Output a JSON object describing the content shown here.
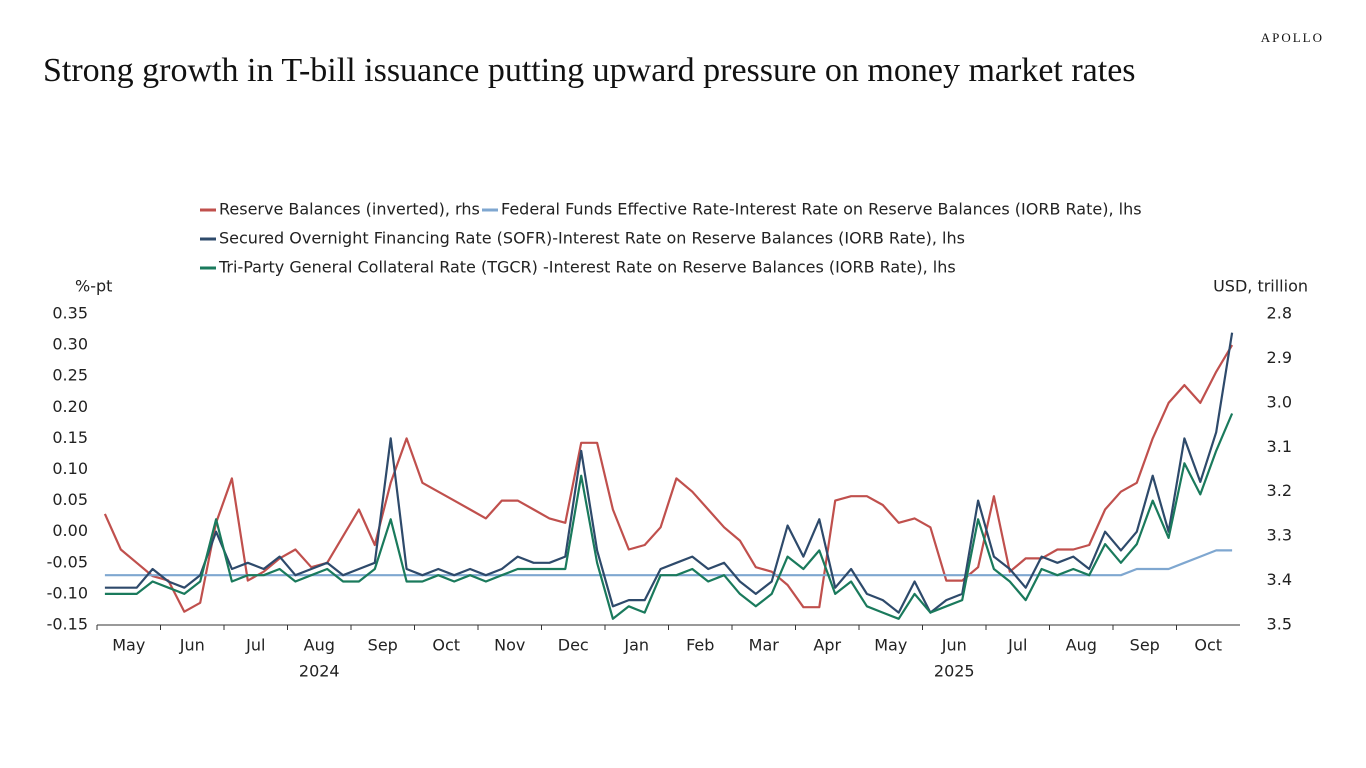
{
  "brand": "APOLLO",
  "chart_data": {
    "type": "line",
    "title": "Strong growth in T-bill issuance putting upward pressure on money market rates",
    "y_label": "%-pt",
    "y2_label": "USD, trillion",
    "categories": [
      "May",
      null,
      null,
      null,
      "Jun",
      null,
      null,
      null,
      "Jul",
      null,
      null,
      null,
      "Aug",
      null,
      null,
      null,
      "Sep",
      null,
      null,
      null,
      "Oct",
      null,
      null,
      null,
      "Nov",
      null,
      null,
      null,
      "Dec",
      null,
      null,
      null,
      "Jan",
      null,
      null,
      null,
      "Feb",
      null,
      null,
      null,
      "Mar",
      null,
      null,
      null,
      "Apr",
      null,
      null,
      null,
      "May",
      null,
      null,
      null,
      "Jun",
      null,
      null,
      null,
      "Jul",
      null,
      null,
      null,
      "Aug",
      null,
      null,
      null,
      "Sep",
      null,
      null,
      null,
      "Oct",
      null,
      null,
      null
    ],
    "years": [
      null,
      null,
      null,
      null,
      null,
      null,
      null,
      null,
      null,
      null,
      null,
      null,
      "2024",
      null,
      null,
      null,
      null,
      null,
      null,
      null,
      null,
      null,
      null,
      null,
      null,
      null,
      null,
      null,
      null,
      null,
      null,
      null,
      null,
      null,
      null,
      null,
      null,
      null,
      null,
      null,
      null,
      null,
      null,
      null,
      null,
      null,
      null,
      null,
      null,
      null,
      null,
      null,
      "2025",
      null,
      null,
      null,
      null,
      null,
      null,
      null,
      null,
      null,
      null,
      null,
      null,
      null,
      null,
      null,
      null,
      null,
      null,
      null
    ],
    "ylim": [
      -0.15,
      0.35
    ],
    "yticks": [
      {
        "value": -0.15,
        "label": "-0.15"
      },
      {
        "value": -0.1,
        "label": "-0.10"
      },
      {
        "value": -0.05,
        "label": "-0.05"
      },
      {
        "value": 0,
        "label": "0.00"
      },
      {
        "value": 0.05,
        "label": "0.05"
      },
      {
        "value": 0.1,
        "label": "0.10"
      },
      {
        "value": 0.15,
        "label": "0.15"
      },
      {
        "value": 0.2,
        "label": "0.20"
      },
      {
        "value": 0.25,
        "label": "0.25"
      },
      {
        "value": 0.3,
        "label": "0.30"
      },
      {
        "value": 0.35,
        "label": "0.35"
      }
    ],
    "y2lim": [
      3.5,
      2.8
    ],
    "y2ticks": [
      3.5,
      3.4,
      3.3,
      3.2,
      3.1,
      {
        "value": 3.0,
        "label": "3.0"
      },
      2.9,
      2.8
    ],
    "series": [
      {
        "name": "Reserve Balances (inverted), rhs",
        "color": "#c0504d",
        "axis": "y2",
        "values": [
          3.25,
          3.33,
          3.36,
          3.39,
          3.4,
          3.47,
          3.45,
          3.27,
          3.17,
          3.4,
          3.38,
          3.35,
          3.33,
          3.37,
          3.36,
          3.3,
          3.24,
          3.32,
          3.18,
          3.08,
          3.18,
          3.2,
          3.22,
          3.24,
          3.26,
          3.22,
          3.22,
          3.24,
          3.26,
          3.27,
          3.09,
          3.09,
          3.24,
          3.33,
          3.32,
          3.28,
          3.17,
          3.2,
          3.24,
          3.28,
          3.31,
          3.37,
          3.38,
          3.41,
          3.46,
          3.46,
          3.22,
          3.21,
          3.21,
          3.23,
          3.27,
          3.26,
          3.28,
          3.4,
          3.4,
          3.37,
          3.21,
          3.38,
          3.35,
          3.35,
          3.33,
          3.33,
          3.32,
          3.24,
          3.2,
          3.18,
          3.08,
          3.0,
          2.96,
          3.0,
          2.93,
          2.87
        ]
      },
      {
        "name": "Federal Funds Effective Rate-Interest Rate on Reserve Balances (IORB Rate), lhs",
        "color": "#7fa7d0",
        "values": [
          -0.07,
          -0.07,
          -0.07,
          -0.07,
          -0.07,
          -0.07,
          -0.07,
          -0.07,
          -0.07,
          -0.07,
          -0.07,
          -0.07,
          -0.07,
          -0.07,
          -0.07,
          -0.07,
          -0.07,
          -0.07,
          -0.07,
          -0.07,
          -0.07,
          -0.07,
          -0.07,
          -0.07,
          -0.07,
          -0.07,
          -0.07,
          -0.07,
          -0.07,
          -0.07,
          -0.07,
          -0.07,
          -0.07,
          -0.07,
          -0.07,
          -0.07,
          -0.07,
          -0.07,
          -0.07,
          -0.07,
          -0.07,
          -0.07,
          -0.07,
          -0.07,
          -0.07,
          -0.07,
          -0.07,
          -0.07,
          -0.07,
          -0.07,
          -0.07,
          -0.07,
          -0.07,
          -0.07,
          -0.07,
          -0.07,
          -0.07,
          -0.07,
          -0.07,
          -0.07,
          -0.07,
          -0.07,
          -0.07,
          -0.07,
          -0.07,
          -0.06,
          -0.06,
          -0.06,
          -0.05,
          -0.04,
          -0.03,
          -0.03
        ]
      },
      {
        "name": "Secured Overnight Financing Rate (SOFR)-Interest Rate on Reserve Balances (IORB Rate), lhs",
        "color": "#2e4a6b",
        "values": [
          -0.09,
          -0.09,
          -0.09,
          -0.06,
          -0.08,
          -0.09,
          -0.07,
          0.0,
          -0.06,
          -0.05,
          -0.06,
          -0.04,
          -0.07,
          -0.06,
          -0.05,
          -0.07,
          -0.06,
          -0.05,
          0.15,
          -0.06,
          -0.07,
          -0.06,
          -0.07,
          -0.06,
          -0.07,
          -0.06,
          -0.04,
          -0.05,
          -0.05,
          -0.04,
          0.13,
          -0.03,
          -0.12,
          -0.11,
          -0.11,
          -0.06,
          -0.05,
          -0.04,
          -0.06,
          -0.05,
          -0.08,
          -0.1,
          -0.08,
          0.01,
          -0.04,
          0.02,
          -0.09,
          -0.06,
          -0.1,
          -0.11,
          -0.13,
          -0.08,
          -0.13,
          -0.11,
          -0.1,
          0.05,
          -0.04,
          -0.06,
          -0.09,
          -0.04,
          -0.05,
          -0.04,
          -0.06,
          0.0,
          -0.03,
          0.0,
          0.09,
          0.0,
          0.15,
          0.08,
          0.16,
          0.32
        ]
      },
      {
        "name": "Tri-Party General Collateral Rate (TGCR) -Interest Rate on Reserve Balances (IORB Rate), lhs",
        "color": "#1a7a5c",
        "values": [
          -0.1,
          -0.1,
          -0.1,
          -0.08,
          -0.09,
          -0.1,
          -0.08,
          0.02,
          -0.08,
          -0.07,
          -0.07,
          -0.06,
          -0.08,
          -0.07,
          -0.06,
          -0.08,
          -0.08,
          -0.06,
          0.02,
          -0.08,
          -0.08,
          -0.07,
          -0.08,
          -0.07,
          -0.08,
          -0.07,
          -0.06,
          -0.06,
          -0.06,
          -0.06,
          0.09,
          -0.05,
          -0.14,
          -0.12,
          -0.13,
          -0.07,
          -0.07,
          -0.06,
          -0.08,
          -0.07,
          -0.1,
          -0.12,
          -0.1,
          -0.04,
          -0.06,
          -0.03,
          -0.1,
          -0.08,
          -0.12,
          -0.13,
          -0.14,
          -0.1,
          -0.13,
          -0.12,
          -0.11,
          0.02,
          -0.06,
          -0.08,
          -0.11,
          -0.06,
          -0.07,
          -0.06,
          -0.07,
          -0.02,
          -0.05,
          -0.02,
          0.05,
          -0.01,
          0.11,
          0.06,
          0.13,
          0.19
        ]
      }
    ]
  }
}
